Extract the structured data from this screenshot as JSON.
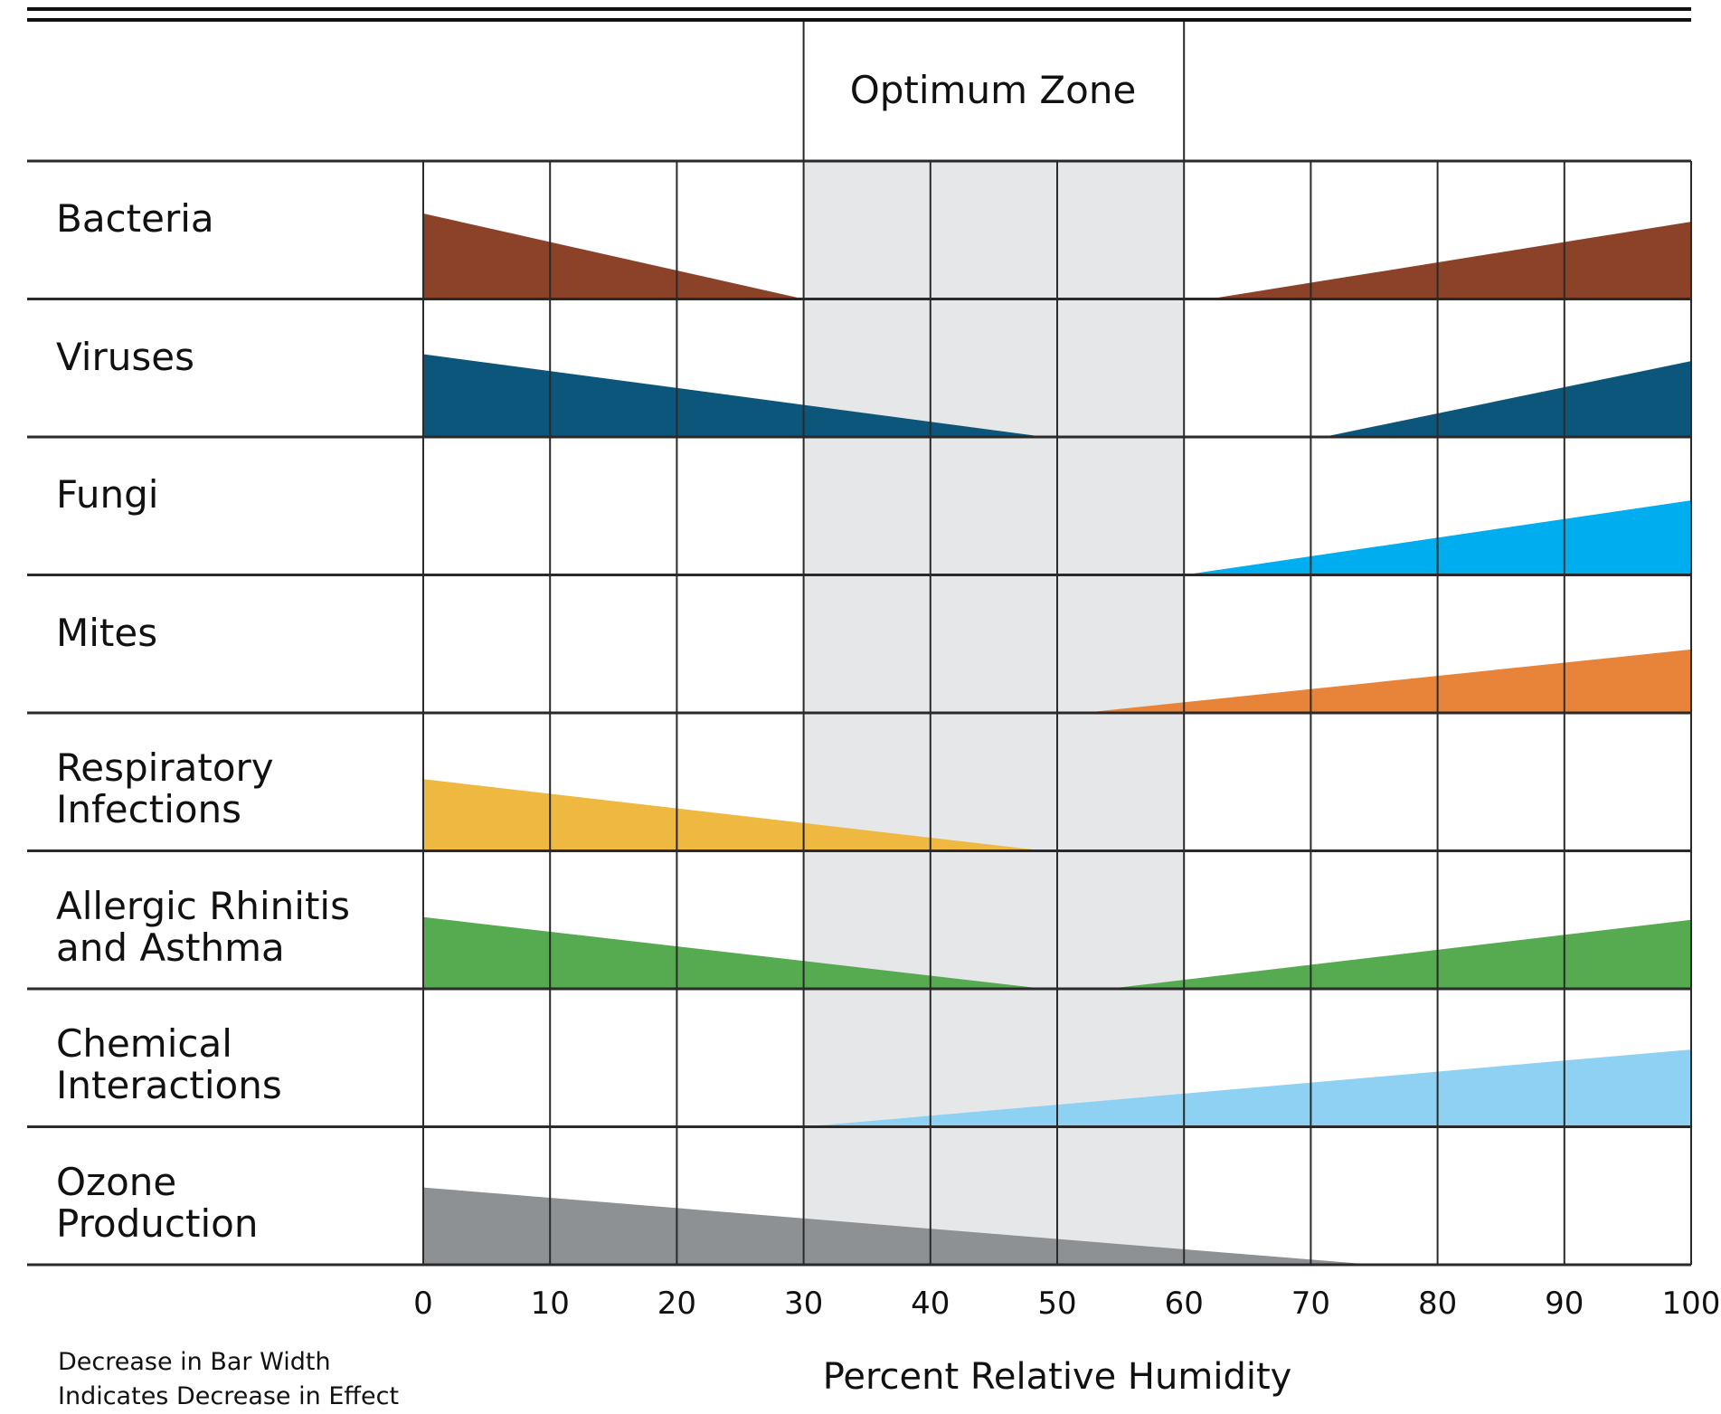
{
  "chart_data": {
    "type": "area",
    "title": "",
    "zone_label": "Optimum Zone",
    "zone_range": [
      30,
      60
    ],
    "xlabel": "Percent Relative Humidity",
    "xlim": [
      0,
      100
    ],
    "x_ticks": [
      "0",
      "10",
      "20",
      "30",
      "40",
      "50",
      "60",
      "70",
      "80",
      "90",
      "100"
    ],
    "note": [
      "Decrease in Bar Width",
      "Indicates Decrease in Effect"
    ],
    "grid": true,
    "rows": [
      {
        "label": [
          "Bacteria"
        ],
        "color": "#8b4228",
        "bands": [
          {
            "x_start": 0,
            "x_end": 30,
            "width_start": 0.62,
            "width_end": 0
          },
          {
            "x_start": 62,
            "x_end": 100,
            "width_start": 0,
            "width_end": 0.56
          }
        ]
      },
      {
        "label": [
          "Viruses"
        ],
        "color": "#0b567a",
        "bands": [
          {
            "x_start": 0,
            "x_end": 49,
            "width_start": 0.6,
            "width_end": 0
          },
          {
            "x_start": 71,
            "x_end": 100,
            "width_start": 0,
            "width_end": 0.55
          }
        ]
      },
      {
        "label": [
          "Fungi"
        ],
        "color": "#00aeef",
        "bands": [
          {
            "x_start": 60,
            "x_end": 100,
            "width_start": 0,
            "width_end": 0.54
          }
        ]
      },
      {
        "label": [
          "Mites"
        ],
        "color": "#e8843a",
        "bands": [
          {
            "x_start": 52,
            "x_end": 100,
            "width_start": 0,
            "width_end": 0.46
          }
        ]
      },
      {
        "label": [
          "Respiratory",
          "Infections"
        ],
        "color": "#efb941",
        "bands": [
          {
            "x_start": 0,
            "x_end": 49,
            "width_start": 0.52,
            "width_end": 0
          }
        ]
      },
      {
        "label": [
          "Allergic Rhinitis",
          "and Asthma"
        ],
        "color": "#56aa50",
        "bands": [
          {
            "x_start": 0,
            "x_end": 49,
            "width_start": 0.52,
            "width_end": 0
          },
          {
            "x_start": 54,
            "x_end": 100,
            "width_start": 0,
            "width_end": 0.5
          }
        ]
      },
      {
        "label": [
          "Chemical",
          "Interactions"
        ],
        "color": "#8fd1f3",
        "bands": [
          {
            "x_start": 30,
            "x_end": 100,
            "width_start": 0,
            "width_end": 0.56
          }
        ]
      },
      {
        "label": [
          "Ozone",
          "Production"
        ],
        "color": "#8e9194",
        "bands": [
          {
            "x_start": 0,
            "x_end": 75,
            "width_start": 0.56,
            "width_end": 0
          }
        ]
      }
    ]
  }
}
